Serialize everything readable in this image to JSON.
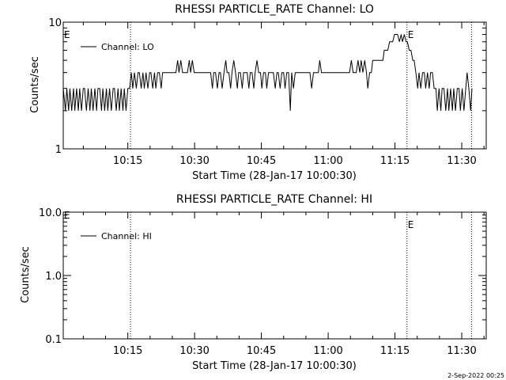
{
  "chart_data": [
    {
      "type": "line",
      "title": "RHESSI PARTICLE_RATE Channel: LO",
      "xlabel": "Start Time (28-Jan-17 10:00:30)",
      "ylabel": "Counts/sec",
      "y_scale": "log",
      "ylim": [
        1,
        10
      ],
      "y_ticks": [
        "1",
        "10"
      ],
      "x_unit": "minutes after 10:00",
      "xlim": [
        0.5,
        95.5
      ],
      "x_ticks": [
        {
          "t": 15,
          "label": "10:15"
        },
        {
          "t": 30,
          "label": "10:30"
        },
        {
          "t": 45,
          "label": "10:45"
        },
        {
          "t": 60,
          "label": "11:00"
        },
        {
          "t": 75,
          "label": "11:15"
        },
        {
          "t": 90,
          "label": "11:30"
        }
      ],
      "event_lines": [
        {
          "t": 15.6,
          "label": ""
        },
        {
          "t": 77.7,
          "label": "E"
        },
        {
          "t": 92.2,
          "label": ""
        }
      ],
      "corner_label": "E",
      "legend": "Channel: LO",
      "series": [
        {
          "name": "Channel: LO",
          "points": [
            [
              0.5,
              3
            ],
            [
              1.0,
              2
            ],
            [
              1.3,
              3
            ],
            [
              1.7,
              2
            ],
            [
              2.0,
              3
            ],
            [
              2.4,
              2
            ],
            [
              2.8,
              3
            ],
            [
              3.1,
              2
            ],
            [
              3.5,
              3
            ],
            [
              3.9,
              2
            ],
            [
              4.2,
              3
            ],
            [
              4.6,
              2
            ],
            [
              5.0,
              3
            ],
            [
              5.3,
              3
            ],
            [
              5.7,
              2
            ],
            [
              6.1,
              3
            ],
            [
              6.5,
              2
            ],
            [
              6.8,
              3
            ],
            [
              7.2,
              2
            ],
            [
              7.6,
              3
            ],
            [
              8.0,
              2
            ],
            [
              8.3,
              3
            ],
            [
              8.7,
              3
            ],
            [
              9.1,
              2
            ],
            [
              9.4,
              3
            ],
            [
              9.8,
              2
            ],
            [
              10.2,
              3
            ],
            [
              10.5,
              2
            ],
            [
              10.9,
              3
            ],
            [
              11.3,
              2
            ],
            [
              11.7,
              3
            ],
            [
              12.0,
              3
            ],
            [
              12.4,
              2
            ],
            [
              12.8,
              3
            ],
            [
              13.1,
              2
            ],
            [
              13.5,
              3
            ],
            [
              13.9,
              2
            ],
            [
              14.2,
              3
            ],
            [
              14.6,
              2
            ],
            [
              15.0,
              3
            ],
            [
              15.4,
              3
            ],
            [
              15.8,
              4
            ],
            [
              16.1,
              3
            ],
            [
              16.5,
              4
            ],
            [
              16.9,
              3
            ],
            [
              17.3,
              4
            ],
            [
              17.6,
              4
            ],
            [
              18.0,
              3
            ],
            [
              18.4,
              4
            ],
            [
              18.7,
              3
            ],
            [
              19.1,
              4
            ],
            [
              19.5,
              3
            ],
            [
              19.9,
              4
            ],
            [
              20.2,
              4
            ],
            [
              20.6,
              3
            ],
            [
              21.0,
              4
            ],
            [
              21.3,
              3
            ],
            [
              21.7,
              4
            ],
            [
              22.1,
              4
            ],
            [
              22.5,
              3
            ],
            [
              22.8,
              4
            ],
            [
              23.2,
              4
            ],
            [
              23.6,
              4
            ],
            [
              24.0,
              4
            ],
            [
              24.3,
              4
            ],
            [
              24.7,
              4
            ],
            [
              25.1,
              4
            ],
            [
              25.4,
              4
            ],
            [
              25.8,
              4
            ],
            [
              26.2,
              5
            ],
            [
              26.5,
              4
            ],
            [
              26.9,
              5
            ],
            [
              27.3,
              4
            ],
            [
              27.7,
              4
            ],
            [
              28.0,
              4
            ],
            [
              28.4,
              4
            ],
            [
              28.8,
              5
            ],
            [
              29.1,
              4
            ],
            [
              29.5,
              5
            ],
            [
              29.9,
              4
            ],
            [
              30.3,
              4
            ],
            [
              30.6,
              4
            ],
            [
              31.0,
              4
            ],
            [
              31.4,
              4
            ],
            [
              31.8,
              4
            ],
            [
              32.1,
              4
            ],
            [
              32.5,
              4
            ],
            [
              32.9,
              4
            ],
            [
              33.2,
              4
            ],
            [
              33.6,
              4
            ],
            [
              34.0,
              3
            ],
            [
              34.3,
              4
            ],
            [
              34.7,
              4
            ],
            [
              35.1,
              3
            ],
            [
              35.5,
              4
            ],
            [
              35.8,
              4
            ],
            [
              36.2,
              3
            ],
            [
              36.6,
              4
            ],
            [
              37.0,
              5
            ],
            [
              37.3,
              4
            ],
            [
              37.7,
              4
            ],
            [
              38.1,
              3
            ],
            [
              38.4,
              4
            ],
            [
              38.8,
              5
            ],
            [
              39.2,
              4
            ],
            [
              39.6,
              3
            ],
            [
              39.9,
              4
            ],
            [
              40.3,
              4
            ],
            [
              40.7,
              3
            ],
            [
              41.0,
              4
            ],
            [
              41.4,
              4
            ],
            [
              41.8,
              4
            ],
            [
              42.2,
              3
            ],
            [
              42.5,
              4
            ],
            [
              42.9,
              4
            ],
            [
              43.3,
              3
            ],
            [
              43.6,
              4
            ],
            [
              44.0,
              5
            ],
            [
              44.4,
              4
            ],
            [
              44.8,
              4
            ],
            [
              45.1,
              3
            ],
            [
              45.5,
              4
            ],
            [
              45.9,
              4
            ],
            [
              46.2,
              3
            ],
            [
              46.6,
              4
            ],
            [
              47.0,
              4
            ],
            [
              47.4,
              4
            ],
            [
              47.7,
              4
            ],
            [
              48.1,
              3
            ],
            [
              48.5,
              4
            ],
            [
              48.8,
              4
            ],
            [
              49.2,
              3
            ],
            [
              49.6,
              4
            ],
            [
              50.0,
              4
            ],
            [
              50.3,
              3
            ],
            [
              50.7,
              4
            ],
            [
              51.1,
              4
            ],
            [
              51.5,
              2
            ],
            [
              51.8,
              4
            ],
            [
              52.2,
              3
            ],
            [
              52.6,
              4
            ],
            [
              52.9,
              4
            ],
            [
              53.3,
              4
            ],
            [
              53.7,
              4
            ],
            [
              54.1,
              4
            ],
            [
              54.4,
              4
            ],
            [
              54.8,
              4
            ],
            [
              55.2,
              4
            ],
            [
              55.5,
              4
            ],
            [
              55.9,
              4
            ],
            [
              56.3,
              3
            ],
            [
              56.7,
              4
            ],
            [
              57.0,
              4
            ],
            [
              57.4,
              4
            ],
            [
              57.8,
              4
            ],
            [
              58.1,
              5
            ],
            [
              58.5,
              4
            ],
            [
              58.9,
              4
            ],
            [
              59.3,
              4
            ],
            [
              59.6,
              4
            ],
            [
              60.0,
              4
            ],
            [
              60.4,
              4
            ],
            [
              60.7,
              4
            ],
            [
              61.1,
              4
            ],
            [
              61.5,
              4
            ],
            [
              61.9,
              4
            ],
            [
              62.2,
              4
            ],
            [
              62.6,
              4
            ],
            [
              63.0,
              4
            ],
            [
              63.4,
              4
            ],
            [
              63.7,
              4
            ],
            [
              64.1,
              4
            ],
            [
              64.5,
              4
            ],
            [
              64.8,
              4
            ],
            [
              65.2,
              5
            ],
            [
              65.6,
              4
            ],
            [
              66.0,
              4
            ],
            [
              66.3,
              4
            ],
            [
              66.7,
              5
            ],
            [
              67.1,
              4
            ],
            [
              67.4,
              5
            ],
            [
              67.8,
              4
            ],
            [
              68.2,
              5
            ],
            [
              68.6,
              4
            ],
            [
              68.9,
              3
            ],
            [
              69.3,
              4
            ],
            [
              69.7,
              4
            ],
            [
              70.0,
              5
            ],
            [
              70.4,
              5
            ],
            [
              70.8,
              5
            ],
            [
              71.2,
              5
            ],
            [
              71.5,
              5
            ],
            [
              71.9,
              5
            ],
            [
              72.3,
              5
            ],
            [
              72.6,
              6
            ],
            [
              73.0,
              6
            ],
            [
              73.4,
              6
            ],
            [
              73.8,
              7
            ],
            [
              74.1,
              7
            ],
            [
              74.5,
              7
            ],
            [
              74.9,
              8
            ],
            [
              75.2,
              8
            ],
            [
              75.6,
              8
            ],
            [
              76.0,
              7
            ],
            [
              76.4,
              8
            ],
            [
              76.7,
              7
            ],
            [
              77.1,
              8
            ],
            [
              77.5,
              7
            ],
            [
              77.8,
              7
            ],
            [
              78.2,
              6
            ],
            [
              78.6,
              6
            ],
            [
              79.0,
              5
            ],
            [
              79.3,
              5
            ],
            [
              79.7,
              4
            ],
            [
              80.1,
              3
            ],
            [
              80.4,
              4
            ],
            [
              80.8,
              3
            ],
            [
              81.2,
              4
            ],
            [
              81.6,
              4
            ],
            [
              81.9,
              3
            ],
            [
              82.3,
              4
            ],
            [
              82.7,
              3
            ],
            [
              83.0,
              4
            ],
            [
              83.4,
              4
            ],
            [
              83.8,
              3
            ],
            [
              84.2,
              3
            ],
            [
              84.5,
              2
            ],
            [
              84.9,
              3
            ],
            [
              85.3,
              2
            ],
            [
              85.6,
              3
            ],
            [
              86.0,
              3
            ],
            [
              86.4,
              2
            ],
            [
              86.8,
              3
            ],
            [
              87.1,
              2
            ],
            [
              87.5,
              3
            ],
            [
              87.9,
              2
            ],
            [
              88.2,
              3
            ],
            [
              88.6,
              2
            ],
            [
              89.0,
              3
            ],
            [
              89.4,
              3
            ],
            [
              89.7,
              2
            ],
            [
              90.1,
              3
            ],
            [
              90.5,
              2
            ],
            [
              90.9,
              3
            ],
            [
              91.2,
              4
            ],
            [
              91.6,
              3
            ],
            [
              92.0,
              2
            ],
            [
              92.3,
              3
            ]
          ]
        }
      ]
    },
    {
      "type": "line",
      "title": "RHESSI PARTICLE_RATE Channel: HI",
      "xlabel": "Start Time (28-Jan-17 10:00:30)",
      "ylabel": "Counts/sec",
      "y_scale": "log",
      "ylim": [
        0.1,
        10
      ],
      "y_ticks": [
        "0.1",
        "1.0",
        "10.0"
      ],
      "x_unit": "minutes after 10:00",
      "xlim": [
        0.5,
        95.5
      ],
      "x_ticks": [
        {
          "t": 15,
          "label": "10:15"
        },
        {
          "t": 30,
          "label": "10:30"
        },
        {
          "t": 45,
          "label": "10:45"
        },
        {
          "t": 60,
          "label": "11:00"
        },
        {
          "t": 75,
          "label": "11:15"
        },
        {
          "t": 90,
          "label": "11:30"
        }
      ],
      "event_lines": [
        {
          "t": 15.6,
          "label": ""
        },
        {
          "t": 77.7,
          "label": "E"
        },
        {
          "t": 92.2,
          "label": ""
        }
      ],
      "corner_label": "E",
      "legend": "Channel: HI",
      "series": [
        {
          "name": "Channel: HI",
          "points": []
        }
      ]
    }
  ],
  "footer": "2-Sep-2022 00:25"
}
